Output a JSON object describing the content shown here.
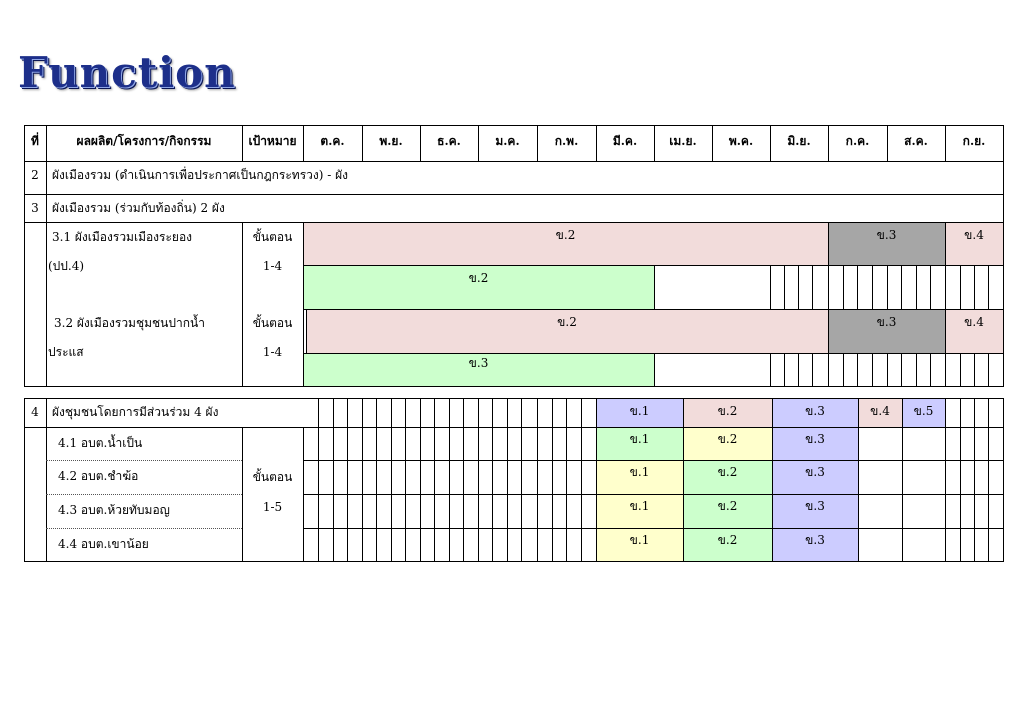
{
  "title": "Function",
  "header": {
    "no": "ที่",
    "project": "ผลผลิต/โครงการ/กิจกรรม",
    "target": "เป้าหมาย",
    "months": [
      "ต.ค.",
      "พ.ย.",
      "ธ.ค.",
      "ม.ค.",
      "ก.พ.",
      "มี.ค.",
      "เม.ย.",
      "พ.ค.",
      "มิ.ย.",
      "ก.ค.",
      "ส.ค.",
      "ก.ย."
    ]
  },
  "rows": {
    "r2": {
      "no": "2",
      "text": "ผังเมืองรวม (ดำเนินการเพื่อประกาศเป็นกฎกระทรวง)   - ผัง"
    },
    "r3": {
      "no": "3",
      "text": "ผังเมืองรวม (ร่วมกับท้องถิ่น)  2  ผัง"
    },
    "r31": {
      "line1": "3.1 ผังเมืองรวมเมืองระยอง",
      "line2": "(ปป.4)",
      "target1": "ขั้นตอน",
      "target2": "1-4",
      "plan": [
        "ข.2",
        "ข.3",
        "ข.4"
      ],
      "actual": "ข.2"
    },
    "r32": {
      "line1": "3.2 ผังเมืองรวมชุมชนปากน้ำ",
      "line2": "ประแส",
      "target1": "ขั้นตอน",
      "target2": "1-4",
      "plan": [
        "ข.2",
        "ข.3",
        "ข.4"
      ],
      "actual": "ข.3"
    },
    "r4": {
      "no": "4",
      "text": "ผังชุมชนโดยการมีส่วนร่วม  4  ผัง",
      "steps": [
        "ข.1",
        "ข.2",
        "ข.3",
        "ข.4",
        "ข.5"
      ]
    },
    "subs": [
      {
        "label": "4.1  อบต.น้ำเป็น",
        "steps": [
          "ข.1",
          "ข.2",
          "ข.3"
        ]
      },
      {
        "label": "4.2  อบต.ชำฆ้อ",
        "steps": [
          "ข.1",
          "ข.2",
          "ข.3"
        ]
      },
      {
        "label": "4.3  อบต.ห้วยทับมอญ",
        "steps": [
          "ข.1",
          "ข.2",
          "ข.3"
        ]
      },
      {
        "label": "4.4  อบต.เขาน้อย",
        "steps": [
          "ข.1",
          "ข.2",
          "ข.3"
        ]
      }
    ],
    "r4target": {
      "line1": "ขั้นตอน",
      "line2": "1-5"
    }
  },
  "colors": {
    "pink": "#f2dcdb",
    "green": "#ccffcc",
    "gray": "#a6a6a6",
    "lavender": "#ccccff",
    "yellow": "#ffffcc",
    "title": "#1d2f8a"
  }
}
